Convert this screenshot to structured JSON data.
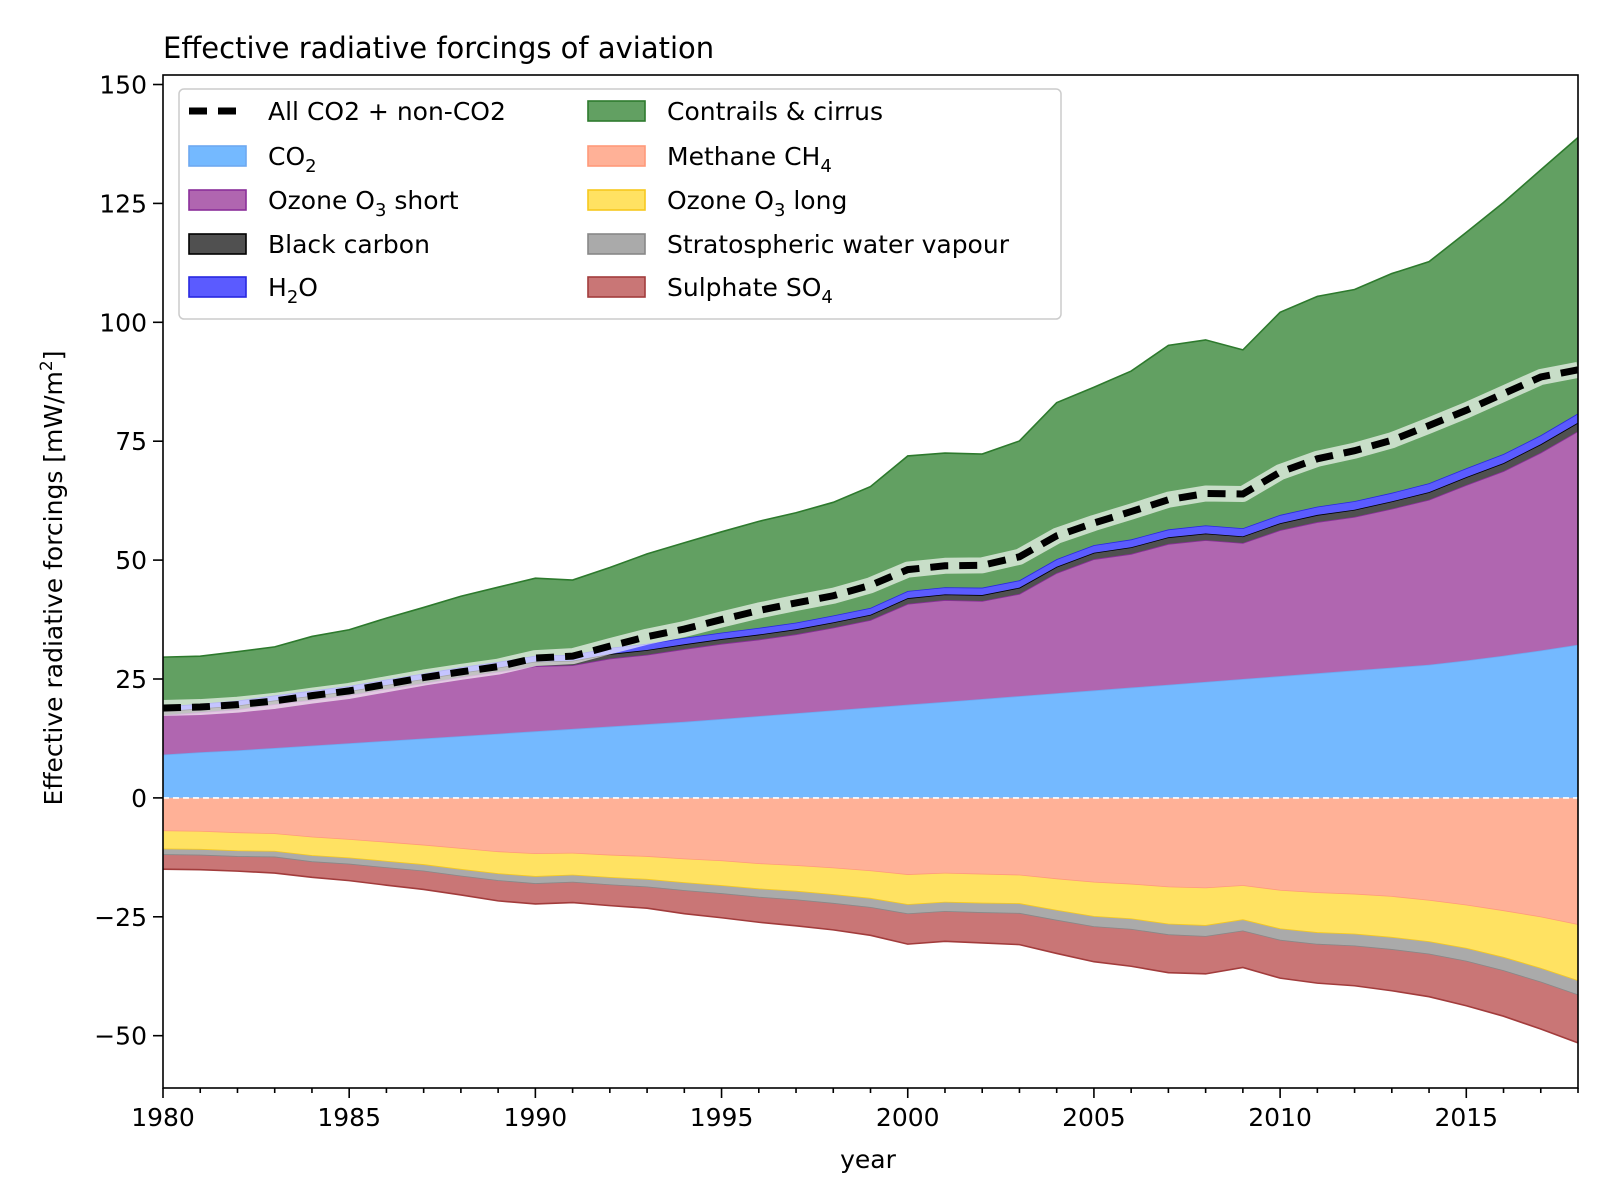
{
  "chart_data": {
    "type": "area",
    "title": "Effective radiative forcings of aviation",
    "xlabel": "year",
    "ylabel": "Effective radiative forcings [mW/m",
    "ylabel_sup": "2",
    "ylabel_end": "]",
    "xlim": [
      1980,
      2018
    ],
    "ylim": [
      -61,
      152
    ],
    "xticks": [
      1980,
      1985,
      1990,
      1995,
      2000,
      2005,
      2010,
      2015
    ],
    "yticks": [
      -50,
      -25,
      0,
      25,
      50,
      75,
      100,
      125,
      150
    ],
    "ytick_labels": [
      "−50",
      "−25",
      "0",
      "25",
      "50",
      "75",
      "100",
      "125",
      "150"
    ],
    "legend_position": "top-left",
    "x": [
      1980,
      1981,
      1982,
      1983,
      1984,
      1985,
      1986,
      1987,
      1988,
      1989,
      1990,
      1991,
      1992,
      1993,
      1994,
      1995,
      1996,
      1997,
      1998,
      1999,
      2000,
      2001,
      2002,
      2003,
      2004,
      2005,
      2006,
      2007,
      2008,
      2009,
      2010,
      2011,
      2012,
      2013,
      2014,
      2015,
      2016,
      2017,
      2018
    ],
    "positive_series": [
      {
        "name": "CO",
        "sub": "2",
        "color": "#74b9ff",
        "edge": "#6ea8f0",
        "values": [
          9.1,
          9.6,
          10.0,
          10.5,
          11.0,
          11.5,
          12.0,
          12.5,
          13.0,
          13.5,
          14.0,
          14.5,
          15.0,
          15.5,
          16.0,
          16.6,
          17.2,
          17.8,
          18.4,
          19.0,
          19.6,
          20.2,
          20.8,
          21.4,
          22.0,
          22.6,
          23.2,
          23.8,
          24.4,
          25.0,
          25.6,
          26.2,
          26.8,
          27.4,
          28.0,
          28.9,
          29.9,
          31.0,
          32.2
        ]
      },
      {
        "name": "Ozone O",
        "sub": "3",
        "tail": " short",
        "color": "#b066b0",
        "edge": "#8a2f9a",
        "values": [
          8.3,
          8.4,
          8.6,
          9.2,
          9.6,
          10.1,
          10.9,
          11.6,
          12.4,
          13.0,
          13.7,
          13.4,
          14.3,
          14.6,
          15.3,
          15.8,
          16.1,
          16.6,
          17.4,
          18.4,
          21.2,
          21.4,
          20.6,
          21.5,
          25.3,
          27.6,
          28.1,
          29.6,
          29.8,
          28.6,
          30.7,
          31.8,
          32.3,
          33.4,
          34.7,
          36.9,
          38.8,
          41.6,
          44.9
        ]
      },
      {
        "name": "Black carbon",
        "color": "#505050",
        "edge": "#000000",
        "values": [
          0.8,
          0.8,
          0.8,
          0.8,
          0.85,
          0.85,
          0.85,
          0.9,
          0.9,
          0.9,
          0.95,
          0.95,
          0.95,
          1.0,
          1.0,
          1.0,
          1.05,
          1.05,
          1.1,
          1.1,
          1.2,
          1.2,
          1.25,
          1.3,
          1.3,
          1.35,
          1.4,
          1.4,
          1.4,
          1.4,
          1.45,
          1.5,
          1.5,
          1.55,
          1.6,
          1.65,
          1.7,
          1.75,
          1.8
        ]
      },
      {
        "name": "H",
        "sub": "2",
        "tail": "O",
        "color": "#5b5bff",
        "edge": "#2828e0",
        "values": [
          1.0,
          1.0,
          1.05,
          1.05,
          1.1,
          1.1,
          1.15,
          1.15,
          1.2,
          1.2,
          1.25,
          1.25,
          1.3,
          1.3,
          1.35,
          1.35,
          1.4,
          1.4,
          1.45,
          1.45,
          1.5,
          1.5,
          1.55,
          1.55,
          1.6,
          1.6,
          1.65,
          1.65,
          1.7,
          1.7,
          1.75,
          1.75,
          1.8,
          1.8,
          1.85,
          1.85,
          1.9,
          1.9,
          1.95
        ]
      },
      {
        "name": "Contrails & cirrus",
        "color": "#62a062",
        "edge": "#2d7a2d",
        "values": [
          10.4,
          10.0,
          10.3,
          10.2,
          11.4,
          11.8,
          12.9,
          13.9,
          14.9,
          15.7,
          16.3,
          15.7,
          16.9,
          18.9,
          20.0,
          21.2,
          22.4,
          23.1,
          23.8,
          25.5,
          28.4,
          28.2,
          28.1,
          29.3,
          32.9,
          33.2,
          35.4,
          38.7,
          39.0,
          37.5,
          42.6,
          44.2,
          44.5,
          46.1,
          46.6,
          49.6,
          52.9,
          55.8,
          58.0
        ]
      }
    ],
    "negative_series": [
      {
        "name": "Methane CH",
        "sub": "4",
        "color": "#ffb197",
        "edge": "#ff9a7a",
        "values": [
          -7.0,
          -7.1,
          -7.4,
          -7.6,
          -8.3,
          -8.8,
          -9.4,
          -10.0,
          -10.7,
          -11.4,
          -11.8,
          -11.7,
          -12.1,
          -12.4,
          -12.9,
          -13.3,
          -13.9,
          -14.3,
          -14.8,
          -15.4,
          -16.2,
          -15.9,
          -16.1,
          -16.3,
          -17.1,
          -17.8,
          -18.2,
          -18.8,
          -19.0,
          -18.5,
          -19.5,
          -20.0,
          -20.3,
          -20.8,
          -21.6,
          -22.6,
          -23.8,
          -25.1,
          -26.7
        ]
      },
      {
        "name": "Ozone O",
        "sub": "3",
        "tail": " long",
        "color": "#ffe262",
        "edge": "#f6c81e",
        "values": [
          -3.8,
          -3.8,
          -3.8,
          -3.7,
          -3.9,
          -3.9,
          -4.0,
          -4.1,
          -4.4,
          -4.6,
          -4.8,
          -4.6,
          -4.7,
          -4.8,
          -5.0,
          -5.2,
          -5.3,
          -5.4,
          -5.6,
          -5.8,
          -6.3,
          -6.1,
          -6.1,
          -6.0,
          -6.6,
          -7.2,
          -7.3,
          -7.8,
          -7.9,
          -7.2,
          -8.1,
          -8.4,
          -8.4,
          -8.6,
          -8.7,
          -9.1,
          -9.8,
          -10.8,
          -11.8
        ]
      },
      {
        "name": "Stratospheric water vapour",
        "color": "#aaaaaa",
        "edge": "#888888",
        "values": [
          -1.2,
          -1.2,
          -1.2,
          -1.2,
          -1.3,
          -1.3,
          -1.35,
          -1.35,
          -1.4,
          -1.45,
          -1.5,
          -1.5,
          -1.55,
          -1.6,
          -1.65,
          -1.7,
          -1.75,
          -1.8,
          -1.85,
          -1.9,
          -1.95,
          -1.95,
          -2.0,
          -2.05,
          -2.1,
          -2.15,
          -2.2,
          -2.25,
          -2.3,
          -2.35,
          -2.4,
          -2.45,
          -2.5,
          -2.55,
          -2.6,
          -2.7,
          -2.8,
          -2.9,
          -3.0
        ]
      },
      {
        "name": "Sulphate SO",
        "sub": "4",
        "color": "#c97676",
        "edge": "#a23c3c",
        "values": [
          -3.0,
          -3.0,
          -3.0,
          -3.3,
          -3.2,
          -3.4,
          -3.6,
          -3.8,
          -3.9,
          -4.2,
          -4.2,
          -4.2,
          -4.3,
          -4.4,
          -4.8,
          -5.0,
          -5.2,
          -5.4,
          -5.5,
          -5.8,
          -6.3,
          -6.2,
          -6.3,
          -6.5,
          -6.9,
          -7.3,
          -7.7,
          -7.9,
          -7.8,
          -7.6,
          -7.9,
          -8.1,
          -8.3,
          -8.6,
          -8.9,
          -9.3,
          -9.5,
          -9.8,
          -10.0
        ]
      }
    ],
    "total_line": {
      "name": "All CO2 + non-CO2",
      "color": "#000000",
      "values": [
        18.9,
        19.1,
        19.6,
        20.4,
        21.5,
        22.5,
        23.9,
        25.3,
        26.5,
        27.6,
        29.4,
        29.8,
        31.9,
        33.9,
        35.5,
        37.5,
        39.4,
        41.0,
        42.5,
        44.7,
        48.0,
        48.8,
        48.9,
        50.7,
        55.1,
        57.8,
        60.2,
        62.7,
        64.0,
        63.9,
        68.5,
        71.3,
        73.0,
        75.2,
        78.3,
        81.5,
        85.0,
        88.5,
        90.0
      ]
    },
    "legend": {
      "col1": [
        "All CO2 + non-CO2",
        "CO2",
        "Ozone O3 short",
        "Black carbon",
        "H2O"
      ],
      "col2": [
        "Contrails & cirrus",
        "Methane CH4",
        "Ozone O3 long",
        "Stratospheric water vapour",
        "Sulphate SO4"
      ]
    },
    "zero_line": {
      "style": "dashed",
      "color": "#ffffff"
    },
    "grid": false
  }
}
